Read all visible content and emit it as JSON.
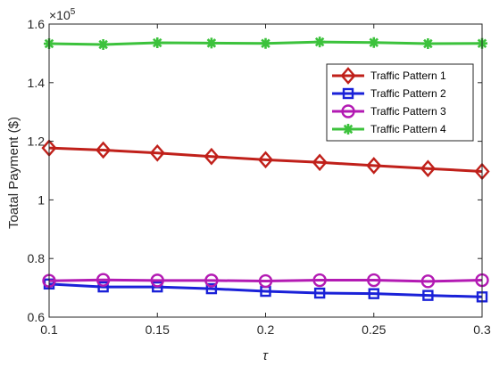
{
  "chart_data": {
    "type": "line",
    "xlabel": "τ",
    "ylabel": "Toatal Payment ($)",
    "y_multiplier": "×10",
    "y_multiplier_exp": "5",
    "xlim": [
      0.1,
      0.3
    ],
    "ylim": [
      0.6,
      1.6
    ],
    "xticks": [
      "0.1",
      "0.15",
      "0.2",
      "0.25",
      "0.3"
    ],
    "yticks": [
      "0.6",
      "0.8",
      "1",
      "1.2",
      "1.4",
      "1.6"
    ],
    "grid": false,
    "legend_position": "top-right",
    "x": [
      0.1,
      0.125,
      0.15,
      0.175,
      0.2,
      0.225,
      0.25,
      0.275,
      0.3
    ],
    "series": [
      {
        "name": "Traffic Pattern 1",
        "color": "#c0201a",
        "marker": "diamond",
        "values": [
          1.177,
          1.17,
          1.16,
          1.148,
          1.137,
          1.128,
          1.117,
          1.107,
          1.097
        ]
      },
      {
        "name": "Traffic Pattern 2",
        "color": "#1a21d8",
        "marker": "square",
        "values": [
          0.713,
          0.703,
          0.703,
          0.697,
          0.688,
          0.682,
          0.68,
          0.674,
          0.669
        ]
      },
      {
        "name": "Traffic Pattern 3",
        "color": "#b31ab3",
        "marker": "circle",
        "values": [
          0.724,
          0.727,
          0.725,
          0.725,
          0.723,
          0.726,
          0.726,
          0.722,
          0.726
        ]
      },
      {
        "name": "Traffic Pattern 4",
        "color": "#3cc23c",
        "marker": "asterisk",
        "values": [
          1.533,
          1.53,
          1.536,
          1.535,
          1.534,
          1.539,
          1.537,
          1.533,
          1.534
        ]
      }
    ]
  }
}
